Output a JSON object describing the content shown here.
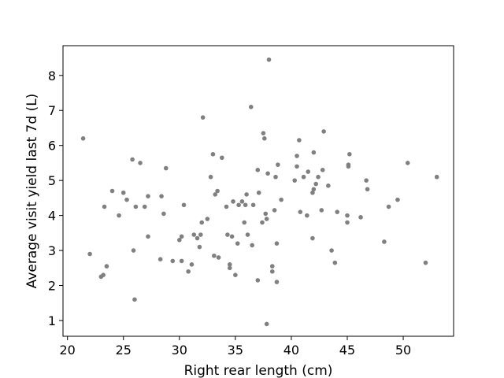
{
  "chart_data": {
    "type": "scatter",
    "title": "",
    "xlabel": "Right rear length (cm)",
    "ylabel": "Average visit yield last 7d (L)",
    "xlim": [
      19.6,
      54.5
    ],
    "ylim": [
      0.55,
      8.85
    ],
    "xticks": [
      20,
      25,
      30,
      35,
      40,
      45,
      50
    ],
    "yticks": [
      1,
      2,
      3,
      4,
      5,
      6,
      7,
      8
    ],
    "grid": false,
    "marker_color": "#808080",
    "series": [
      {
        "points": [
          [
            21.4,
            6.2
          ],
          [
            22.0,
            2.9
          ],
          [
            23.0,
            2.25
          ],
          [
            23.2,
            2.3
          ],
          [
            23.3,
            4.25
          ],
          [
            23.5,
            2.55
          ],
          [
            24.0,
            4.7
          ],
          [
            24.6,
            4.0
          ],
          [
            25.0,
            4.65
          ],
          [
            25.3,
            4.45
          ],
          [
            25.8,
            5.6
          ],
          [
            25.9,
            3.0
          ],
          [
            26.0,
            1.6
          ],
          [
            26.1,
            4.25
          ],
          [
            26.5,
            5.5
          ],
          [
            26.9,
            4.25
          ],
          [
            27.2,
            4.55
          ],
          [
            27.2,
            3.4
          ],
          [
            28.3,
            2.75
          ],
          [
            28.4,
            4.55
          ],
          [
            28.6,
            4.05
          ],
          [
            28.8,
            5.35
          ],
          [
            29.4,
            2.7
          ],
          [
            30.0,
            3.3
          ],
          [
            30.2,
            3.4
          ],
          [
            30.2,
            2.7
          ],
          [
            30.4,
            4.3
          ],
          [
            30.8,
            2.4
          ],
          [
            31.1,
            2.6
          ],
          [
            31.3,
            3.45
          ],
          [
            31.6,
            3.35
          ],
          [
            31.8,
            3.1
          ],
          [
            31.9,
            3.45
          ],
          [
            32.0,
            3.8
          ],
          [
            32.1,
            6.8
          ],
          [
            32.5,
            3.9
          ],
          [
            32.8,
            5.1
          ],
          [
            33.0,
            5.75
          ],
          [
            33.1,
            2.85
          ],
          [
            33.2,
            4.6
          ],
          [
            33.4,
            4.7
          ],
          [
            33.5,
            2.8
          ],
          [
            33.8,
            5.65
          ],
          [
            34.2,
            4.25
          ],
          [
            34.3,
            3.45
          ],
          [
            34.5,
            2.6
          ],
          [
            34.5,
            2.5
          ],
          [
            34.7,
            3.4
          ],
          [
            34.8,
            4.4
          ],
          [
            35.0,
            2.3
          ],
          [
            35.2,
            3.2
          ],
          [
            35.3,
            4.3
          ],
          [
            35.6,
            4.4
          ],
          [
            35.8,
            3.8
          ],
          [
            35.9,
            4.3
          ],
          [
            36.0,
            4.6
          ],
          [
            36.1,
            3.45
          ],
          [
            36.4,
            7.1
          ],
          [
            36.5,
            3.15
          ],
          [
            36.6,
            4.3
          ],
          [
            37.0,
            5.3
          ],
          [
            37.0,
            2.15
          ],
          [
            37.1,
            4.65
          ],
          [
            37.4,
            3.8
          ],
          [
            37.5,
            6.35
          ],
          [
            37.6,
            6.2
          ],
          [
            37.7,
            4.05
          ],
          [
            37.8,
            3.9
          ],
          [
            37.8,
            0.9
          ],
          [
            37.9,
            5.2
          ],
          [
            38.0,
            8.45
          ],
          [
            38.3,
            2.4
          ],
          [
            38.3,
            2.55
          ],
          [
            38.5,
            4.15
          ],
          [
            38.6,
            5.1
          ],
          [
            38.7,
            2.1
          ],
          [
            38.7,
            3.2
          ],
          [
            38.8,
            5.45
          ],
          [
            39.1,
            4.45
          ],
          [
            40.3,
            5.0
          ],
          [
            40.5,
            5.7
          ],
          [
            40.5,
            5.4
          ],
          [
            40.7,
            6.15
          ],
          [
            40.8,
            4.1
          ],
          [
            41.1,
            5.1
          ],
          [
            41.4,
            4.0
          ],
          [
            41.5,
            5.25
          ],
          [
            41.9,
            3.35
          ],
          [
            41.9,
            4.65
          ],
          [
            42.0,
            4.75
          ],
          [
            42.0,
            5.8
          ],
          [
            42.2,
            4.9
          ],
          [
            42.4,
            5.1
          ],
          [
            42.7,
            4.15
          ],
          [
            42.8,
            5.3
          ],
          [
            42.9,
            6.4
          ],
          [
            43.3,
            4.85
          ],
          [
            43.6,
            3.0
          ],
          [
            43.9,
            2.65
          ],
          [
            44.1,
            4.1
          ],
          [
            45.0,
            4.0
          ],
          [
            45.0,
            3.8
          ],
          [
            45.1,
            5.45
          ],
          [
            45.1,
            5.4
          ],
          [
            45.2,
            5.75
          ],
          [
            46.2,
            3.95
          ],
          [
            46.7,
            5.0
          ],
          [
            46.8,
            4.75
          ],
          [
            48.3,
            3.25
          ],
          [
            48.7,
            4.25
          ],
          [
            49.5,
            4.45
          ],
          [
            50.4,
            5.5
          ],
          [
            52.0,
            2.65
          ],
          [
            53.0,
            5.1
          ]
        ]
      }
    ]
  }
}
